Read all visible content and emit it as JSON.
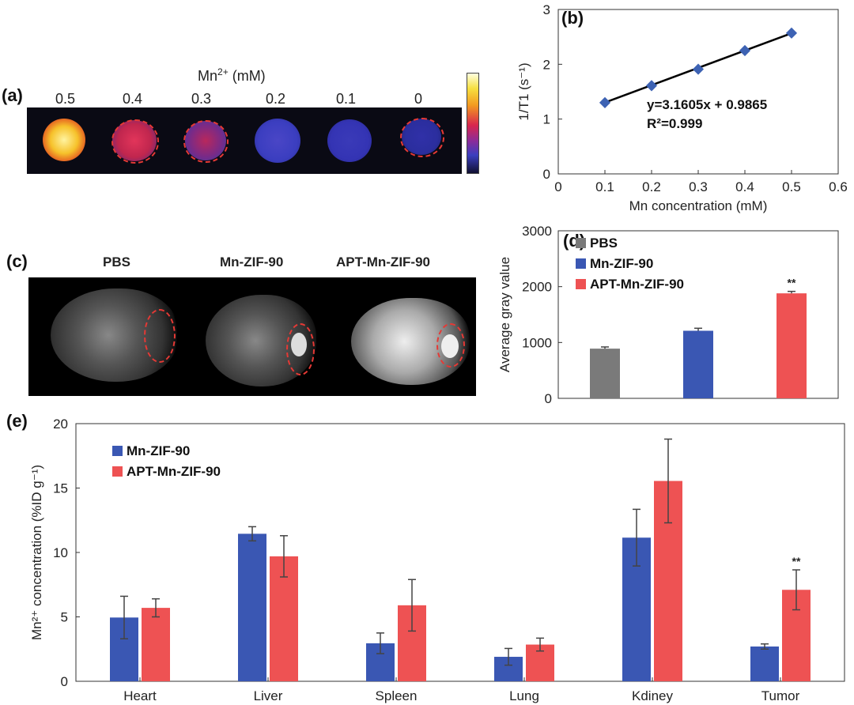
{
  "panels": {
    "a": "(a)",
    "b": "(b)",
    "c": "(c)",
    "d": "(d)",
    "e": "(e)"
  },
  "panel_a": {
    "header": "Mn",
    "header_sup": "2+",
    "header_unit": " (mM)",
    "concentrations": [
      "0.5",
      "0.4",
      "0.3",
      "0.2",
      "0.1",
      "0"
    ],
    "well_colors": [
      "#f6c22b",
      "#d2284e",
      "#a8244f",
      "#3b3ec0",
      "#3434b4",
      "#2b2e9e"
    ]
  },
  "panel_c": {
    "labels": [
      "PBS",
      "Mn-ZIF-90",
      "APT-Mn-ZIF-90"
    ]
  },
  "chart_data": [
    {
      "panel": "b",
      "type": "scatter",
      "x": [
        0.1,
        0.2,
        0.3,
        0.4,
        0.5
      ],
      "y": [
        1.3,
        1.61,
        1.91,
        2.25,
        2.57
      ],
      "fit": {
        "slope": 3.1605,
        "intercept": 0.9865
      },
      "equation": "y=3.1605x + 0.9865",
      "r2": "R²=0.999",
      "xlabel": "Mn concentration (mM)",
      "ylabel": "1/T1 (s⁻¹)",
      "xlim": [
        0,
        0.6
      ],
      "ylim": [
        0,
        3
      ],
      "xticks": [
        "0",
        "0.1",
        "0.2",
        "0.3",
        "0.4",
        "0.5",
        "0.6"
      ],
      "yticks": [
        "0",
        "1",
        "2",
        "3"
      ],
      "marker_color": "#3d62b3"
    },
    {
      "panel": "d",
      "type": "bar",
      "categories": [
        "PBS",
        "Mn-ZIF-90",
        "APT-Mn-ZIF-90"
      ],
      "values": [
        890,
        1210,
        1880
      ],
      "errors": [
        30,
        45,
        35
      ],
      "colors": [
        "#7a7a7a",
        "#3a57b3",
        "#ee5253"
      ],
      "legend": [
        "PBS",
        "Mn-ZIF-90",
        "APT-Mn-ZIF-90"
      ],
      "legend_position": "top-left",
      "annotations": [
        {
          "index": 2,
          "text": "**"
        }
      ],
      "ylabel": "Average gray value",
      "ylim": [
        0,
        3000
      ],
      "yticks": [
        "0",
        "1000",
        "2000",
        "3000"
      ]
    },
    {
      "panel": "e",
      "type": "bar",
      "categories": [
        "Heart",
        "Liver",
        "Spleen",
        "Lung",
        "Kdiney",
        "Tumor"
      ],
      "series": [
        {
          "name": "Mn-ZIF-90",
          "values": [
            4.95,
            11.45,
            2.95,
            1.9,
            11.15,
            2.7
          ],
          "errors": [
            1.65,
            0.55,
            0.8,
            0.65,
            2.2,
            0.2
          ],
          "color": "#3a57b3"
        },
        {
          "name": "APT-Mn-ZIF-90",
          "values": [
            5.7,
            9.7,
            5.9,
            2.85,
            15.55,
            7.1
          ],
          "errors": [
            0.7,
            1.6,
            2.0,
            0.5,
            3.25,
            1.55
          ],
          "color": "#ee5253"
        }
      ],
      "annotations": [
        {
          "category": 5,
          "series": 1,
          "text": "**"
        }
      ],
      "legend_position": "top-left",
      "ylabel": "Mn²⁺ concentration (%ID g⁻¹)",
      "ylim": [
        0,
        20
      ],
      "yticks": [
        "0",
        "5",
        "10",
        "15",
        "20"
      ]
    }
  ]
}
